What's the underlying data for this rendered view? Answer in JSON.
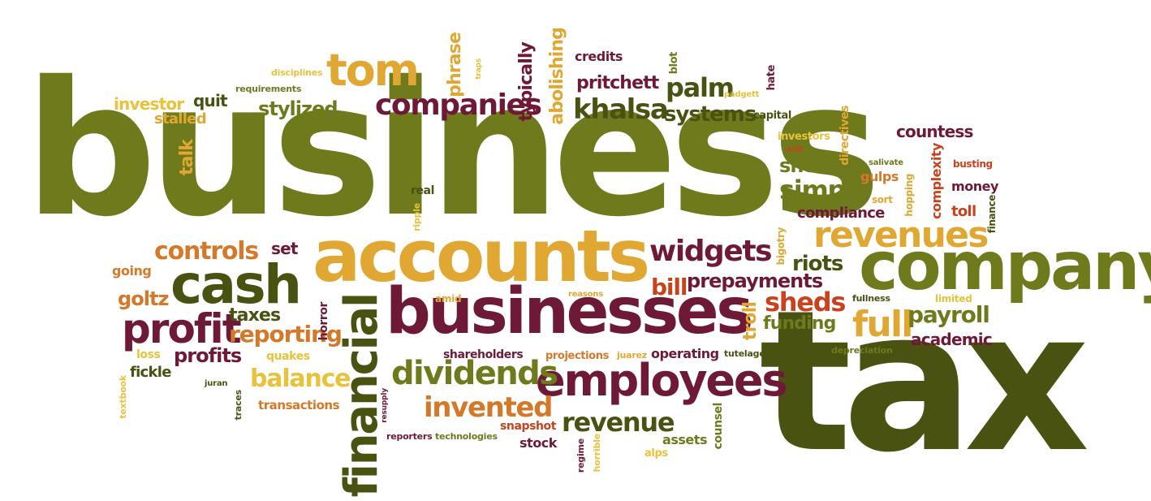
{
  "colors": {
    "olive": "#6e7a1c",
    "dark_olive": "#4a5212",
    "gold": "#e0a832",
    "orange": "#d4782a",
    "maroon": "#6e1a36",
    "yellow": "#e8c23a",
    "olive_light": "#8c9a2a",
    "red_orange": "#c8421e"
  },
  "words": [
    {
      "text": "business",
      "color": "olive"
    },
    {
      "text": "tax",
      "color": "dark_olive"
    },
    {
      "text": "company",
      "color": "olive"
    },
    {
      "text": "accounts",
      "color": "gold"
    },
    {
      "text": "businesses",
      "color": "maroon"
    },
    {
      "text": "cash",
      "color": "dark_olive"
    },
    {
      "text": "employees",
      "color": "maroon"
    },
    {
      "text": "financial",
      "color": "dark_olive"
    },
    {
      "text": "profit",
      "color": "maroon"
    },
    {
      "text": "tom",
      "color": "gold"
    },
    {
      "text": "revenues",
      "color": "gold"
    },
    {
      "text": "dividends",
      "color": "olive"
    },
    {
      "text": "companies",
      "color": "maroon"
    },
    {
      "text": "widgets",
      "color": "maroon"
    },
    {
      "text": "khalsa",
      "color": "dark_olive"
    },
    {
      "text": "controls",
      "color": "orange"
    },
    {
      "text": "full",
      "color": "gold"
    },
    {
      "text": "invented",
      "color": "orange"
    },
    {
      "text": "revenue",
      "color": "dark_olive"
    },
    {
      "text": "simple",
      "color": "olive"
    },
    {
      "text": "balance",
      "color": "yellow"
    },
    {
      "text": "reporting",
      "color": "orange"
    },
    {
      "text": "sheds",
      "color": "red_orange"
    },
    {
      "text": "palm",
      "color": "dark_olive"
    },
    {
      "text": "payroll",
      "color": "olive"
    },
    {
      "text": "prepayments",
      "color": "maroon"
    },
    {
      "text": "riots",
      "color": "dark_olive"
    },
    {
      "text": "systems",
      "color": "dark_olive"
    },
    {
      "text": "pritchett",
      "color": "maroon"
    },
    {
      "text": "stylized",
      "color": "olive"
    },
    {
      "text": "profits",
      "color": "maroon"
    },
    {
      "text": "taxes",
      "color": "dark_olive"
    },
    {
      "text": "funding",
      "color": "olive"
    },
    {
      "text": "bill",
      "color": "red_orange"
    },
    {
      "text": "goltz",
      "color": "orange"
    },
    {
      "text": "sheet",
      "color": "olive"
    },
    {
      "text": "countess",
      "color": "maroon"
    },
    {
      "text": "academic",
      "color": "maroon"
    },
    {
      "text": "compliance",
      "color": "maroon"
    },
    {
      "text": "credits",
      "color": "maroon"
    },
    {
      "text": "investor",
      "color": "yellow"
    },
    {
      "text": "quit",
      "color": "dark_olive"
    },
    {
      "text": "stalled",
      "color": "gold"
    },
    {
      "text": "set",
      "color": "maroon"
    },
    {
      "text": "going",
      "color": "orange"
    },
    {
      "text": "fickle",
      "color": "dark_olive"
    },
    {
      "text": "operating",
      "color": "maroon"
    },
    {
      "text": "stock",
      "color": "maroon"
    },
    {
      "text": "assets",
      "color": "olive"
    },
    {
      "text": "transactions",
      "color": "orange"
    },
    {
      "text": "toll",
      "color": "red_orange"
    },
    {
      "text": "money",
      "color": "maroon"
    },
    {
      "text": "gulps",
      "color": "orange"
    },
    {
      "text": "quakes",
      "color": "yellow"
    },
    {
      "text": "loss",
      "color": "yellow"
    },
    {
      "text": "real",
      "color": "dark_olive"
    },
    {
      "text": "talk",
      "color": "gold"
    },
    {
      "text": "phrase",
      "color": "gold"
    },
    {
      "text": "abolishing",
      "color": "gold"
    },
    {
      "text": "typically",
      "color": "maroon"
    },
    {
      "text": "troll",
      "color": "gold"
    },
    {
      "text": "horror",
      "color": "maroon"
    },
    {
      "text": "complexity",
      "color": "red_orange"
    },
    {
      "text": "directives",
      "color": "gold"
    },
    {
      "text": "counsel",
      "color": "olive"
    },
    {
      "text": "bigotry",
      "color": "gold"
    },
    {
      "text": "finance",
      "color": "dark_olive"
    },
    {
      "text": "snapshot",
      "color": "red_orange"
    },
    {
      "text": "shareholders",
      "color": "maroon"
    },
    {
      "text": "projections",
      "color": "orange"
    },
    {
      "text": "capital",
      "color": "dark_olive"
    },
    {
      "text": "investors",
      "color": "yellow"
    },
    {
      "text": "sort",
      "color": "gold"
    },
    {
      "text": "busting",
      "color": "red_orange"
    },
    {
      "text": "hopping",
      "color": "gold"
    },
    {
      "text": "disciplines",
      "color": "yellow"
    },
    {
      "text": "requirements",
      "color": "olive"
    },
    {
      "text": "padgett",
      "color": "yellow"
    },
    {
      "text": "hate",
      "color": "maroon"
    },
    {
      "text": "blot",
      "color": "olive"
    },
    {
      "text": "traps",
      "color": "yellow"
    },
    {
      "text": "exit",
      "color": "red_orange"
    },
    {
      "text": "salivate",
      "color": "olive"
    },
    {
      "text": "depreciation",
      "color": "olive"
    },
    {
      "text": "fullness",
      "color": "dark_olive"
    },
    {
      "text": "limited",
      "color": "yellow"
    },
    {
      "text": "tutelage",
      "color": "dark_olive"
    },
    {
      "text": "juarez",
      "color": "gold"
    },
    {
      "text": "amid",
      "color": "gold"
    },
    {
      "text": "reasons",
      "color": "gold"
    },
    {
      "text": "ripple",
      "color": "yellow"
    },
    {
      "text": "juran",
      "color": "dark_olive"
    },
    {
      "text": "textbook",
      "color": "yellow"
    },
    {
      "text": "traces",
      "color": "dark_olive"
    },
    {
      "text": "resupply",
      "color": "maroon"
    },
    {
      "text": "reporters",
      "color": "maroon"
    },
    {
      "text": "technologies",
      "color": "olive"
    },
    {
      "text": "regime",
      "color": "maroon"
    },
    {
      "text": "horrible",
      "color": "yellow"
    },
    {
      "text": "alps",
      "color": "yellow"
    }
  ]
}
